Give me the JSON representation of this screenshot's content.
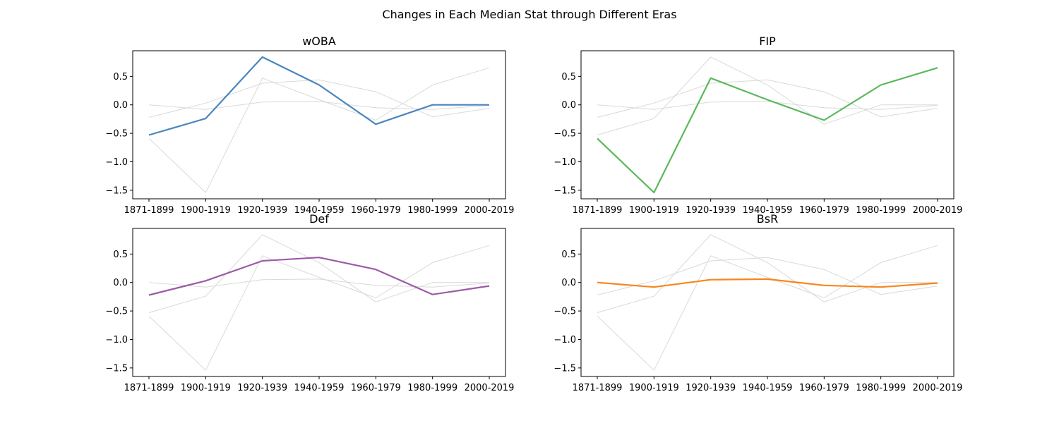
{
  "figure": {
    "title": "Changes in Each Median Stat through Different Eras"
  },
  "chart_data": {
    "type": "line",
    "suptitle": "Changes in Each Median Stat through Different Eras",
    "categories": [
      "1871-1899",
      "1900-1919",
      "1920-1939",
      "1940-1959",
      "1960-1979",
      "1980-1999",
      "2000-2019"
    ],
    "ylim": [
      -1.65,
      0.95
    ],
    "yticks": [
      -1.5,
      -1.0,
      -0.5,
      0.0,
      0.5
    ],
    "ytick_labels": [
      "−1.5",
      "−1.0",
      "−0.5",
      "0.0",
      "0.5"
    ],
    "grid": false,
    "background_line_color": "#d9d9d9",
    "series": [
      {
        "name": "wOBA",
        "color": "#4a86be",
        "values": [
          -0.53,
          -0.24,
          0.84,
          0.35,
          -0.34,
          0.0,
          0.0
        ]
      },
      {
        "name": "FIP",
        "color": "#5cb85c",
        "values": [
          -0.59,
          -1.54,
          0.47,
          0.09,
          -0.27,
          0.35,
          0.65
        ]
      },
      {
        "name": "Def",
        "color": "#9d5aa8",
        "values": [
          -0.22,
          0.03,
          0.38,
          0.44,
          0.23,
          -0.21,
          -0.06
        ]
      },
      {
        "name": "BsR",
        "color": "#f8861a",
        "values": [
          0.0,
          -0.08,
          0.05,
          0.06,
          -0.05,
          -0.08,
          -0.01
        ]
      }
    ]
  }
}
